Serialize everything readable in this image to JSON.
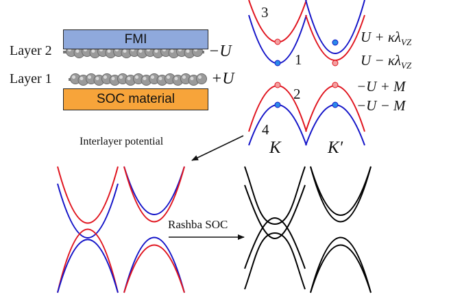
{
  "stack": {
    "top_layer": "FMI",
    "bottom_layer": "SOC material",
    "layer2_label": "Layer 2",
    "layer1_label": "Layer 1",
    "layer2_potential": "−U",
    "layer1_potential": "+U"
  },
  "bands": {
    "numbers": [
      "3",
      "1",
      "2",
      "4"
    ],
    "energies": [
      "U + κλ_VZ",
      "U − κλ_VZ",
      "−U + M",
      "−U − M"
    ],
    "valley_K": "K",
    "valley_Kp": "K′"
  },
  "arrows": {
    "interlayer": "Interlayer potential",
    "rashba": "Rashba SOC"
  },
  "colors": {
    "red_band": "#e0141e",
    "blue_band": "#1414c8",
    "black_band": "#000000",
    "dot_red": "#f3a0a0",
    "dot_blue": "#2a8ae8"
  }
}
